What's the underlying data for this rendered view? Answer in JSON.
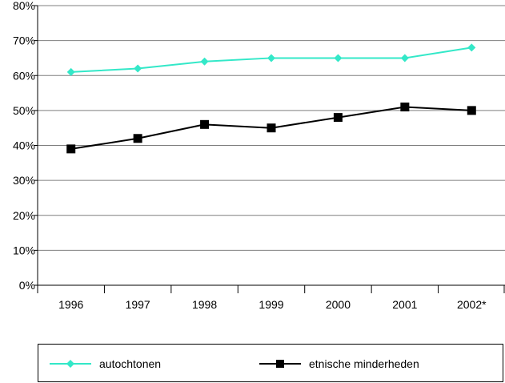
{
  "chart_data": {
    "type": "line",
    "categories": [
      "1996",
      "1997",
      "1998",
      "1999",
      "2000",
      "2001",
      "2002*"
    ],
    "series": [
      {
        "name": "autochtonen",
        "values": [
          61,
          62,
          64,
          65,
          65,
          65,
          68
        ],
        "color": "#33e8c8",
        "marker": "diamond"
      },
      {
        "name": "etnische minderheden",
        "values": [
          39,
          42,
          46,
          45,
          48,
          51,
          50
        ],
        "color": "#000000",
        "marker": "square"
      }
    ],
    "y_ticks": [
      "0%",
      "10%",
      "20%",
      "30%",
      "40%",
      "50%",
      "60%",
      "70%",
      "80%"
    ],
    "ylim": [
      0,
      80
    ],
    "y_unit": "%",
    "grid": true,
    "legend_position": "bottom"
  }
}
